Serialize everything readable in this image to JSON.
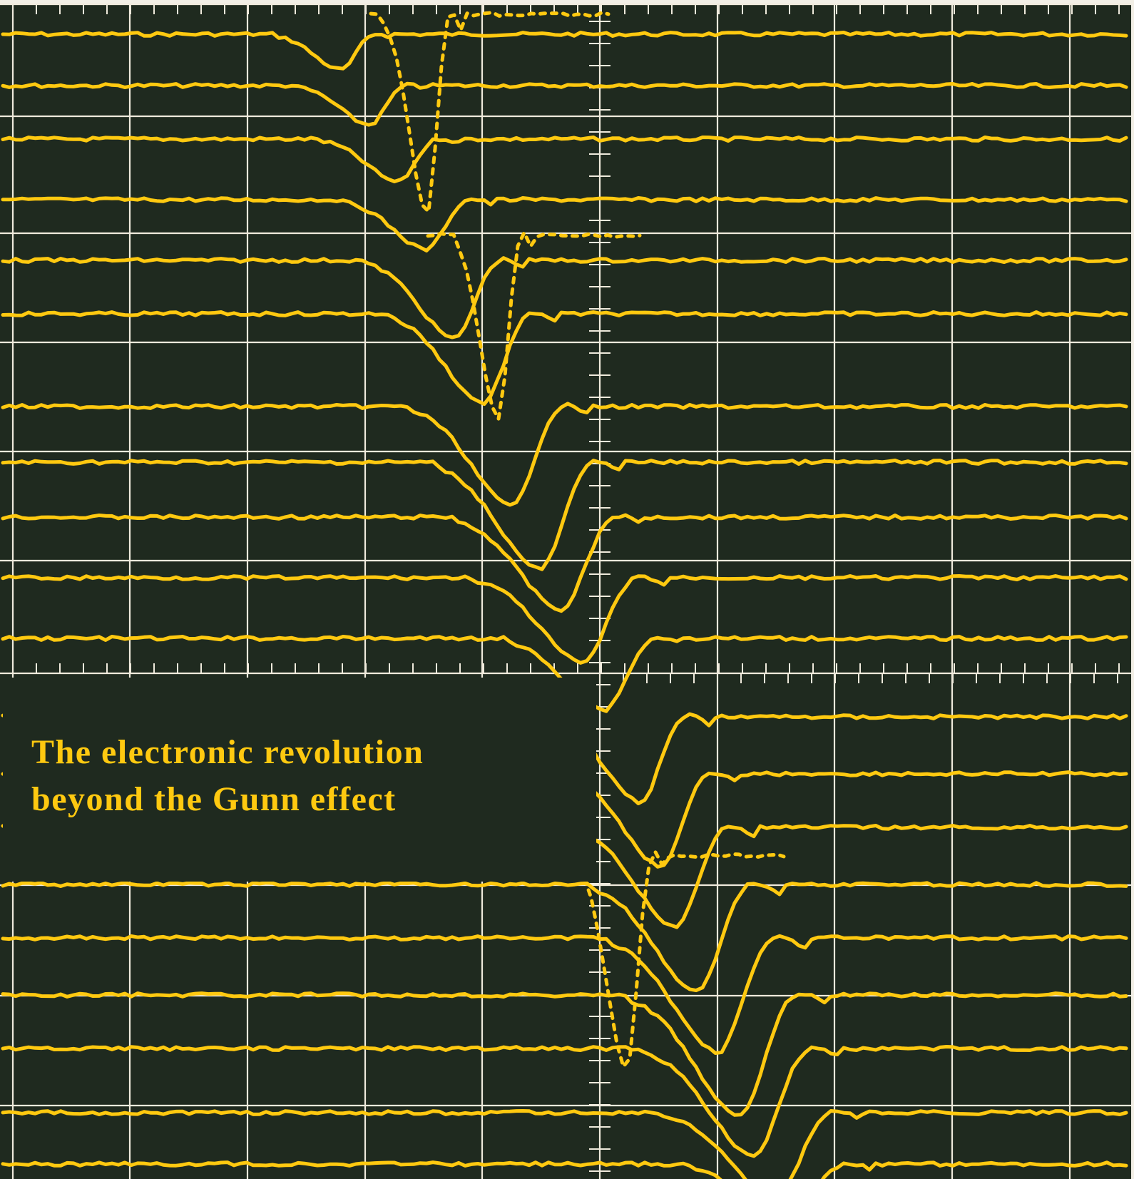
{
  "cover": {
    "headline_line_1": "The electronic revolution",
    "headline_line_2": "beyond the Gunn effect"
  },
  "colors": {
    "background": "#1f2a1f",
    "grid": "#efeadc",
    "trace": "#ffc910",
    "paper": "#f2efe6"
  },
  "illustration": {
    "subject": "oscilloscope-traces",
    "trace_rows_upper_panel": 11,
    "trace_rows_lower_panel": 8
  }
}
